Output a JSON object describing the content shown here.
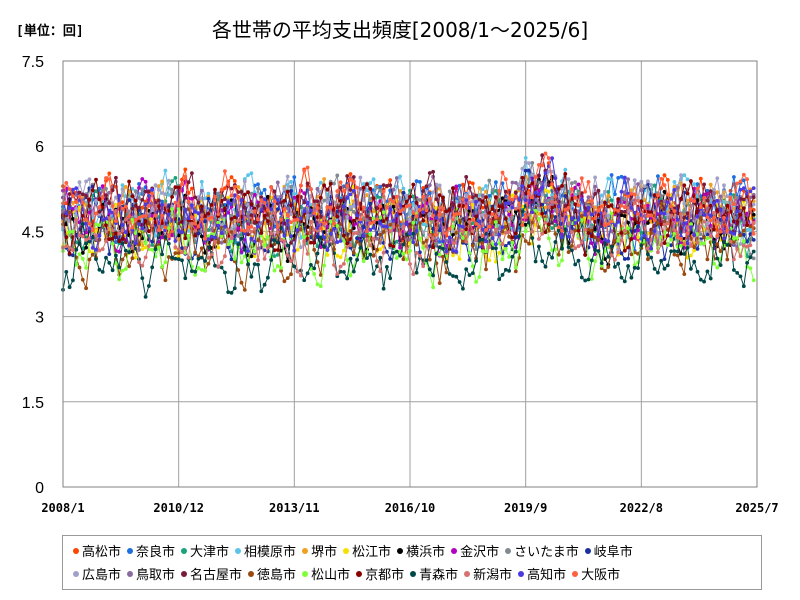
{
  "header": {
    "unit_label": "[単位：回]"
  },
  "chart_data": {
    "type": "line",
    "title": "各世帯の平均支出頻度[2008/1～2025/6]",
    "xlabel": "",
    "ylabel": "",
    "ylim": [
      0,
      7.5
    ],
    "yticks": [
      "0",
      "1.5",
      "3",
      "4.5",
      "6",
      "7.5"
    ],
    "ytick_values": [
      0,
      1.5,
      3,
      4.5,
      6,
      7.5
    ],
    "xticks": [
      "2008/1",
      "2010/12",
      "2013/11",
      "2016/10",
      "2019/9",
      "2022/8",
      "2025/7"
    ],
    "x_range": [
      "2008/1",
      "2025/7"
    ],
    "grid": true,
    "legend_position": "bottom",
    "series": [
      {
        "name": "高松市",
        "color": "#ff4500",
        "base": 4.9,
        "amp": 0.55,
        "seed": 1
      },
      {
        "name": "奈良市",
        "color": "#1e6fe0",
        "base": 4.9,
        "amp": 0.6,
        "seed": 2
      },
      {
        "name": "大津市",
        "color": "#1aa37a",
        "base": 4.7,
        "amp": 0.55,
        "seed": 3
      },
      {
        "name": "相模原市",
        "color": "#5bc4e8",
        "base": 4.9,
        "amp": 0.55,
        "seed": 4
      },
      {
        "name": "堺市",
        "color": "#f0a020",
        "base": 4.8,
        "amp": 0.55,
        "seed": 5
      },
      {
        "name": "松江市",
        "color": "#f5e000",
        "base": 4.6,
        "amp": 0.6,
        "seed": 6
      },
      {
        "name": "横浜市",
        "color": "#000000",
        "base": 4.6,
        "amp": 0.5,
        "seed": 7
      },
      {
        "name": "金沢市",
        "color": "#b000c0",
        "base": 4.7,
        "amp": 0.55,
        "seed": 8
      },
      {
        "name": "さいたま市",
        "color": "#808a90",
        "base": 4.8,
        "amp": 0.55,
        "seed": 9
      },
      {
        "name": "岐阜市",
        "color": "#1a2fa0",
        "base": 4.6,
        "amp": 0.55,
        "seed": 10
      },
      {
        "name": "広島市",
        "color": "#a0a0c8",
        "base": 4.9,
        "amp": 0.55,
        "seed": 11
      },
      {
        "name": "鳥取市",
        "color": "#8a6aa0",
        "base": 4.8,
        "amp": 0.55,
        "seed": 12
      },
      {
        "name": "名古屋市",
        "color": "#7a1a3a",
        "base": 4.9,
        "amp": 0.55,
        "seed": 13
      },
      {
        "name": "徳島市",
        "color": "#9a4a10",
        "base": 4.3,
        "amp": 0.6,
        "seed": 14
      },
      {
        "name": "松山市",
        "color": "#7fff3a",
        "base": 4.3,
        "amp": 0.6,
        "seed": 15
      },
      {
        "name": "京都市",
        "color": "#8a0000",
        "base": 4.8,
        "amp": 0.55,
        "seed": 16
      },
      {
        "name": "青森市",
        "color": "#004848",
        "base": 4.0,
        "amp": 0.55,
        "seed": 17
      },
      {
        "name": "新潟市",
        "color": "#d87070",
        "base": 4.4,
        "amp": 0.55,
        "seed": 18
      },
      {
        "name": "高知市",
        "color": "#4a3ae0",
        "base": 4.8,
        "amp": 0.55,
        "seed": 19
      },
      {
        "name": "大阪市",
        "color": "#ff6040",
        "base": 4.9,
        "amp": 0.55,
        "seed": 20
      }
    ]
  }
}
